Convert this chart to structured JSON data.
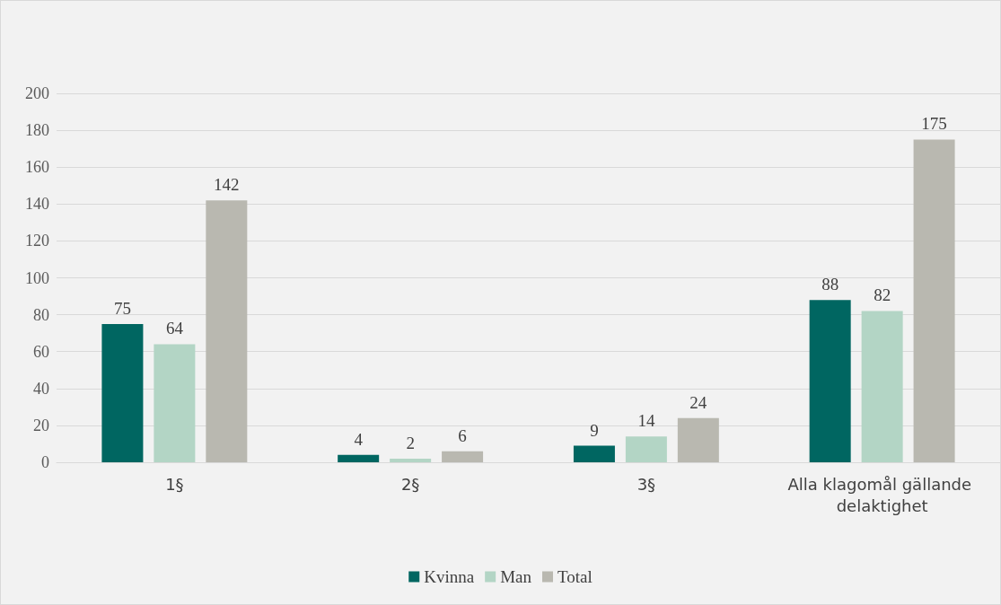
{
  "chart_data": {
    "type": "bar",
    "categories": [
      "1§",
      "2§",
      "3§",
      "Alla klagomål gällande delaktighet"
    ],
    "series": [
      {
        "name": "Kvinna",
        "color": "#006661",
        "values": [
          75,
          4,
          9,
          88
        ]
      },
      {
        "name": "Man",
        "color": "#b3d5c5",
        "values": [
          64,
          2,
          14,
          82
        ]
      },
      {
        "name": "Total",
        "color": "#b9b8b0",
        "values": [
          142,
          6,
          24,
          175
        ]
      }
    ],
    "ylim": [
      0,
      200
    ],
    "yticks": [
      0,
      20,
      40,
      60,
      80,
      100,
      120,
      140,
      160,
      180,
      200
    ],
    "grid": "y",
    "legend": "bottom",
    "data_labels": true
  }
}
